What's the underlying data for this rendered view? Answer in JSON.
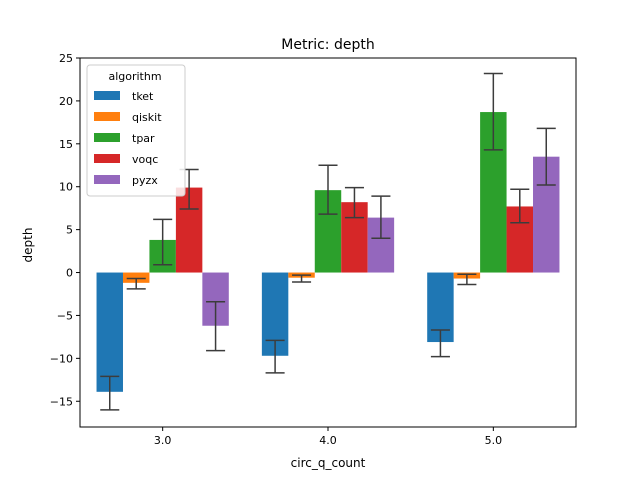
{
  "chart_data": {
    "type": "bar",
    "title": "Metric: depth",
    "xlabel": "circ_q_count",
    "ylabel": "depth",
    "categories": [
      "3.0",
      "4.0",
      "5.0"
    ],
    "ylim": [
      -18,
      25
    ],
    "yticks": [
      -15,
      -10,
      -5,
      0,
      5,
      10,
      15,
      20,
      25
    ],
    "grid": false,
    "legend": {
      "title": "algorithm",
      "placement": "top-left"
    },
    "series": [
      {
        "name": "tket",
        "color": "#1f77b4",
        "values": [
          -13.9,
          -9.7,
          -8.1
        ],
        "err_low": [
          -16.0,
          -11.7,
          -9.8
        ],
        "err_high": [
          -12.1,
          -7.9,
          -6.7
        ]
      },
      {
        "name": "qiskit",
        "color": "#ff7f0e",
        "values": [
          -1.2,
          -0.6,
          -0.7
        ],
        "err_low": [
          -1.9,
          -1.1,
          -1.4
        ],
        "err_high": [
          -0.7,
          -0.3,
          -0.2
        ]
      },
      {
        "name": "tpar",
        "color": "#2ca02c",
        "values": [
          3.8,
          9.6,
          18.7
        ],
        "err_low": [
          0.9,
          6.8,
          14.3
        ],
        "err_high": [
          6.2,
          12.5,
          23.2
        ]
      },
      {
        "name": "voqc",
        "color": "#d62728",
        "values": [
          9.9,
          8.2,
          7.7
        ],
        "err_low": [
          7.4,
          6.4,
          5.8
        ],
        "err_high": [
          12.0,
          9.9,
          9.7
        ]
      },
      {
        "name": "pyzx",
        "color": "#9467bd",
        "values": [
          -6.2,
          6.4,
          13.5
        ],
        "err_low": [
          -9.1,
          4.0,
          10.2
        ],
        "err_high": [
          -3.4,
          8.9,
          16.8
        ]
      }
    ]
  }
}
